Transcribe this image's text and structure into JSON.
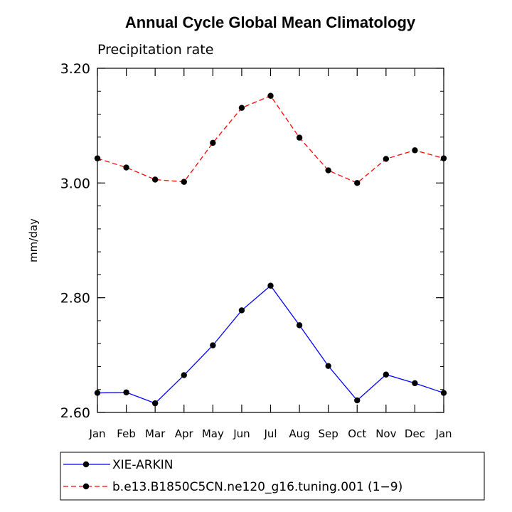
{
  "chart_data": {
    "type": "line",
    "title": "Annual Cycle Global Mean Climatology",
    "subtitle": "Precipitation rate",
    "xlabel": "",
    "ylabel": "mm/day",
    "categories": [
      "Jan",
      "Feb",
      "Mar",
      "Apr",
      "May",
      "Jun",
      "Jul",
      "Aug",
      "Sep",
      "Oct",
      "Nov",
      "Dec",
      "Jan"
    ],
    "ylim": [
      2.6,
      3.2
    ],
    "yticks": [
      2.6,
      2.8,
      3.0,
      3.2
    ],
    "ytick_labels": [
      "2.60",
      "2.80",
      "3.00",
      "3.20"
    ],
    "grid": false,
    "legend_position": "bottom",
    "series": [
      {
        "name": "XIE-ARKIN",
        "color": "#0000ff",
        "dash": "solid",
        "marker": "filled-circle",
        "values": [
          2.634,
          2.635,
          2.616,
          2.665,
          2.717,
          2.778,
          2.821,
          2.752,
          2.681,
          2.621,
          2.666,
          2.651,
          2.634
        ]
      },
      {
        "name": "b.e13.B1850C5CN.ne120_g16.tuning.001 (1−9)",
        "color": "#ff0000",
        "dash": "dashed",
        "marker": "filled-circle",
        "values": [
          3.043,
          3.027,
          3.006,
          3.002,
          3.07,
          3.131,
          3.152,
          3.079,
          3.022,
          3.0,
          3.042,
          3.057,
          3.043
        ]
      }
    ]
  }
}
